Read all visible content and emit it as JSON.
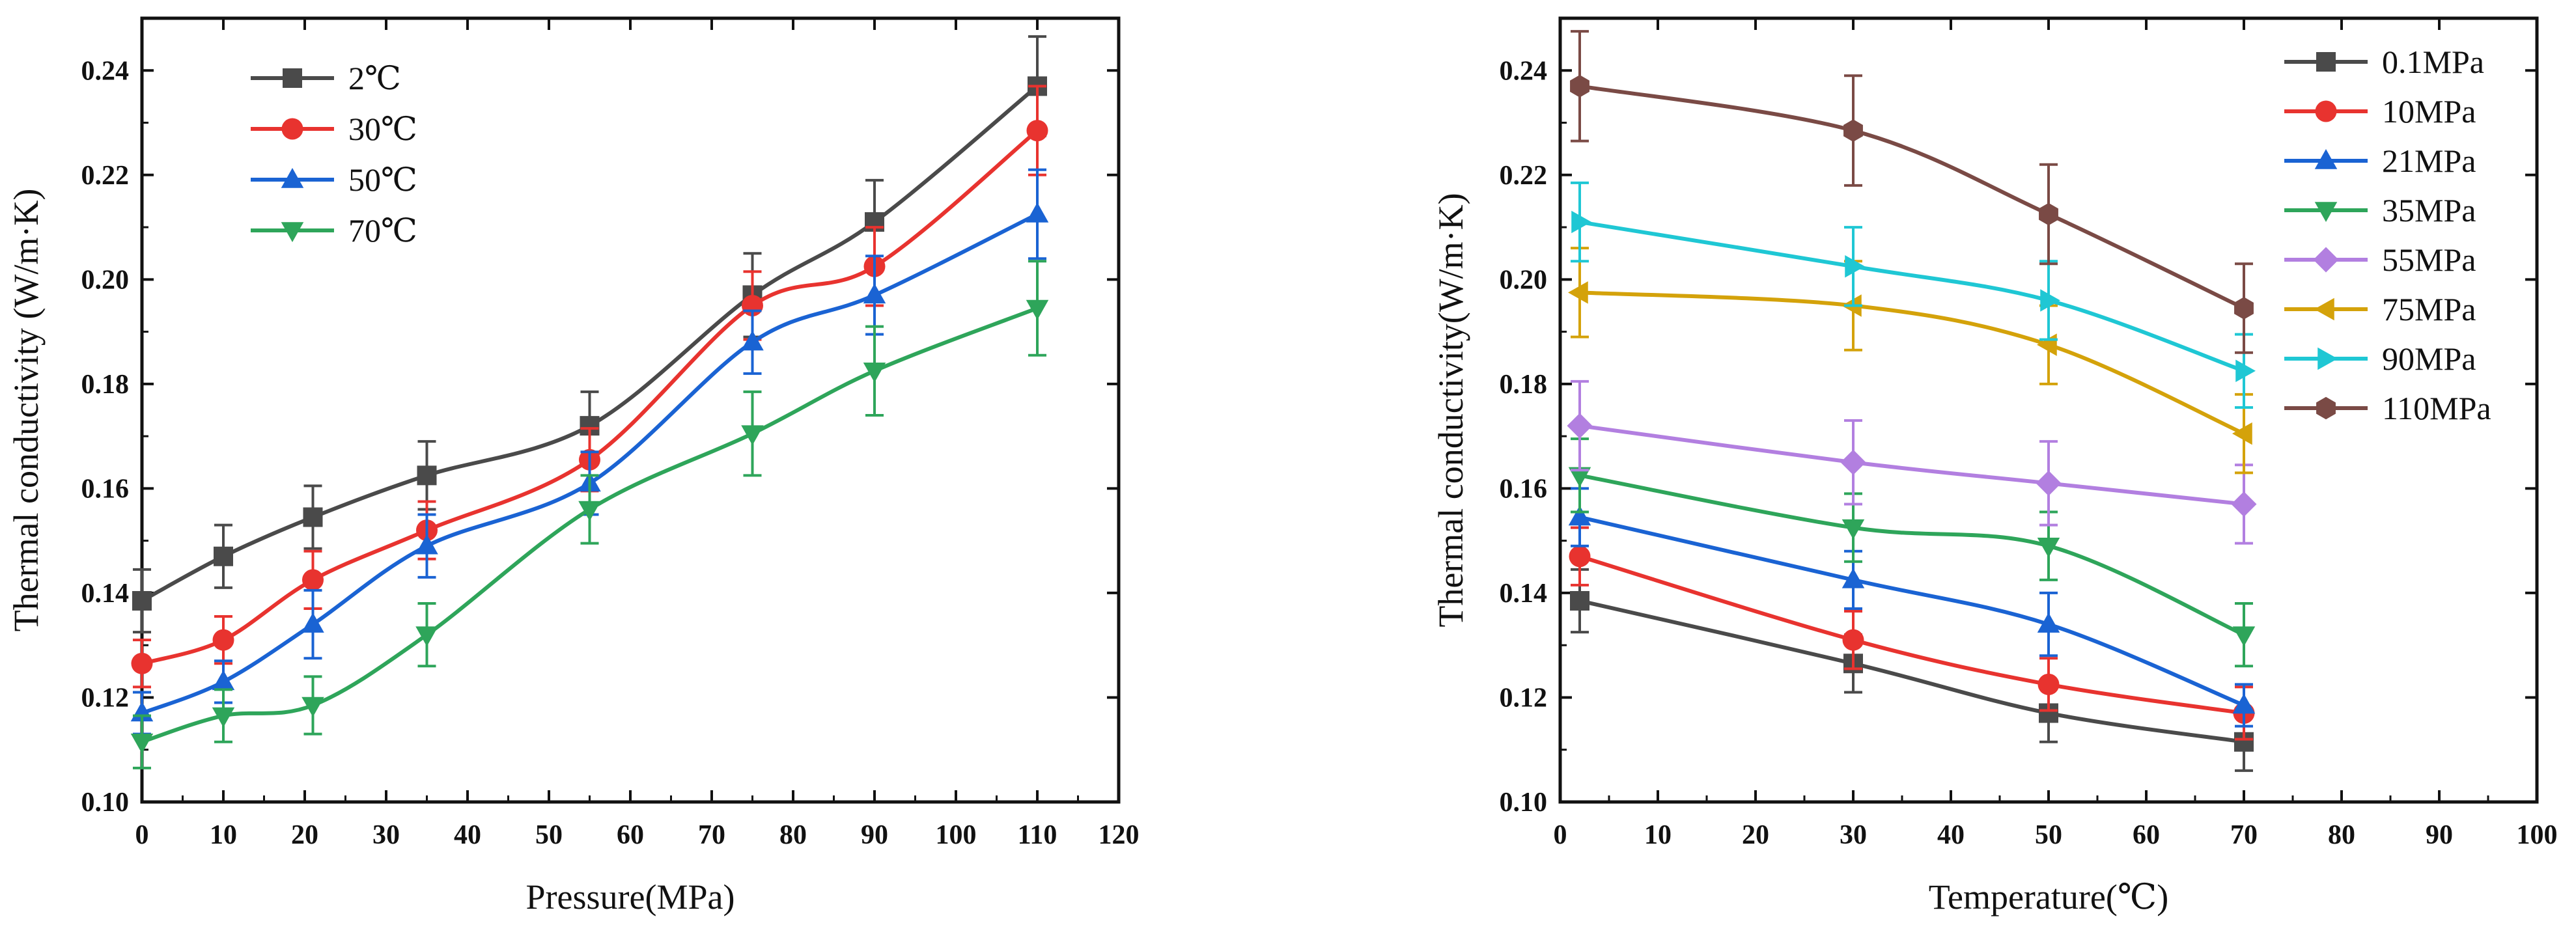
{
  "chart_data": [
    {
      "type": "line",
      "xlabel": "Pressure(MPa)",
      "ylabel": "Thermal conductivity (W/m·K)",
      "xlim": [
        0,
        120
      ],
      "ylim": [
        0.1,
        0.25
      ],
      "xticks": [
        0,
        10,
        20,
        30,
        40,
        50,
        60,
        70,
        80,
        90,
        100,
        110,
        120
      ],
      "yticks": [
        0.1,
        0.12,
        0.14,
        0.16,
        0.18,
        0.2,
        0.22,
        0.24
      ],
      "ytick_decimals": 2,
      "legend_position": "top-left",
      "x": [
        0,
        10,
        21,
        35,
        55,
        75,
        90,
        110
      ],
      "series": [
        {
          "name": "2℃",
          "color": "#4a4a4a",
          "marker": "square",
          "values": [
            0.1385,
            0.147,
            0.1545,
            0.1625,
            0.172,
            0.197,
            0.211,
            0.237
          ],
          "errors": [
            0.006,
            0.006,
            0.006,
            0.0065,
            0.0065,
            0.008,
            0.008,
            0.0095
          ]
        },
        {
          "name": "30℃",
          "color": "#e8332f",
          "marker": "circle",
          "values": [
            0.1265,
            0.131,
            0.1425,
            0.152,
            0.1655,
            0.195,
            0.2025,
            0.2285
          ],
          "errors": [
            0.0045,
            0.0045,
            0.0055,
            0.0055,
            0.006,
            0.0065,
            0.0075,
            0.0085
          ]
        },
        {
          "name": "50℃",
          "color": "#1a63d3",
          "marker": "triangle-up",
          "values": [
            0.117,
            0.123,
            0.134,
            0.149,
            0.161,
            0.188,
            0.197,
            0.2125
          ],
          "errors": [
            0.004,
            0.004,
            0.0065,
            0.006,
            0.006,
            0.006,
            0.0075,
            0.0085
          ]
        },
        {
          "name": "70℃",
          "color": "#2ea55a",
          "marker": "triangle-down",
          "values": [
            0.1115,
            0.1165,
            0.1185,
            0.132,
            0.156,
            0.1705,
            0.1825,
            0.1945
          ],
          "errors": [
            0.005,
            0.005,
            0.0055,
            0.006,
            0.0065,
            0.008,
            0.0085,
            0.009
          ]
        }
      ]
    },
    {
      "type": "line",
      "xlabel": "Temperature(℃)",
      "ylabel": "Thermal conductivity(W/m·K)",
      "xlim": [
        0,
        100
      ],
      "ylim": [
        0.1,
        0.25
      ],
      "xticks": [
        0,
        10,
        20,
        30,
        40,
        50,
        60,
        70,
        80,
        90,
        100
      ],
      "yticks": [
        0.1,
        0.12,
        0.14,
        0.16,
        0.18,
        0.2,
        0.22,
        0.24
      ],
      "ytick_decimals": 2,
      "legend_position": "top-right",
      "x": [
        2,
        30,
        50,
        70
      ],
      "series": [
        {
          "name": "0.1MPa",
          "color": "#4a4a4a",
          "marker": "square",
          "values": [
            0.1385,
            0.1265,
            0.117,
            0.1115
          ],
          "errors": [
            0.006,
            0.0055,
            0.0055,
            0.0055
          ]
        },
        {
          "name": "10MPa",
          "color": "#e8332f",
          "marker": "circle",
          "values": [
            0.147,
            0.131,
            0.1225,
            0.117
          ],
          "errors": [
            0.0055,
            0.0055,
            0.005,
            0.005
          ]
        },
        {
          "name": "21MPa",
          "color": "#1a63d3",
          "marker": "triangle-up",
          "values": [
            0.1545,
            0.1425,
            0.134,
            0.1185
          ],
          "errors": [
            0.0055,
            0.0055,
            0.006,
            0.004
          ]
        },
        {
          "name": "35MPa",
          "color": "#2ea55a",
          "marker": "triangle-down",
          "values": [
            0.1625,
            0.1525,
            0.149,
            0.132
          ],
          "errors": [
            0.007,
            0.0065,
            0.0065,
            0.006
          ]
        },
        {
          "name": "55MPa",
          "color": "#b27fe0",
          "marker": "diamond",
          "values": [
            0.172,
            0.165,
            0.161,
            0.157
          ],
          "errors": [
            0.0085,
            0.008,
            0.008,
            0.0075
          ]
        },
        {
          "name": "75MPa",
          "color": "#d4a20a",
          "marker": "triangle-left",
          "values": [
            0.1975,
            0.195,
            0.1875,
            0.1705
          ],
          "errors": [
            0.0085,
            0.0085,
            0.0075,
            0.0075
          ]
        },
        {
          "name": "90MPa",
          "color": "#1fc7d4",
          "marker": "triangle-right",
          "values": [
            0.211,
            0.2025,
            0.196,
            0.1825
          ],
          "errors": [
            0.0075,
            0.0075,
            0.0075,
            0.007
          ]
        },
        {
          "name": "110MPa",
          "color": "#7a4a45",
          "marker": "hexagon",
          "values": [
            0.237,
            0.2285,
            0.2125,
            0.1945
          ],
          "errors": [
            0.0105,
            0.0105,
            0.0095,
            0.0085
          ]
        }
      ]
    }
  ]
}
